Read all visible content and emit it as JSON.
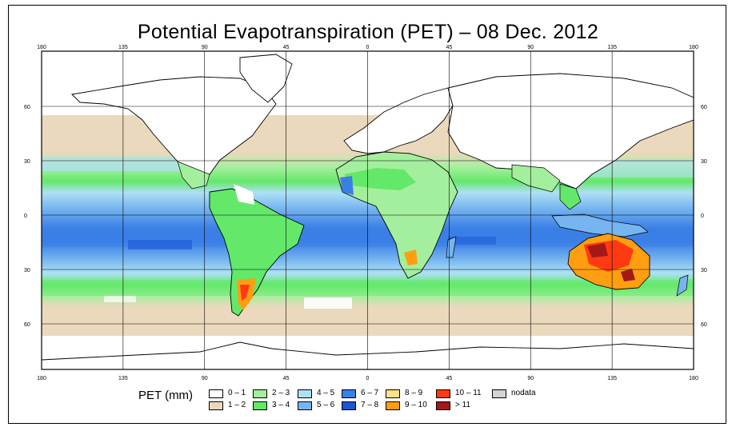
{
  "title": "Potential Evapotranspiration (PET) – 08 Dec. 2012",
  "axes": {
    "lon_ticks": [
      "180",
      "135",
      "90",
      "45",
      "0",
      "45",
      "90",
      "135",
      "180"
    ],
    "lat_ticks": [
      "60",
      "30",
      "0",
      "30",
      "60"
    ]
  },
  "legend": {
    "title": "PET (mm)",
    "items": [
      {
        "label": "0 – 1",
        "color": "#ffffff"
      },
      {
        "label": "1 – 2",
        "color": "#ead9bc"
      },
      {
        "label": "2 – 3",
        "color": "#a4ef9d"
      },
      {
        "label": "3 – 4",
        "color": "#64e86a"
      },
      {
        "label": "4 – 5",
        "color": "#aee0f5"
      },
      {
        "label": "5 – 6",
        "color": "#77b5f0"
      },
      {
        "label": "6 – 7",
        "color": "#3a7fe6"
      },
      {
        "label": "7 – 8",
        "color": "#1a55d5"
      },
      {
        "label": "8 – 9",
        "color": "#ffe08a"
      },
      {
        "label": "9 – 10",
        "color": "#ff9e10"
      },
      {
        "label": "10 – 11",
        "color": "#ff3a12"
      },
      {
        "label": "> 11",
        "color": "#a31818"
      },
      {
        "label": "nodata",
        "color": "#d4d4d4"
      }
    ]
  }
}
